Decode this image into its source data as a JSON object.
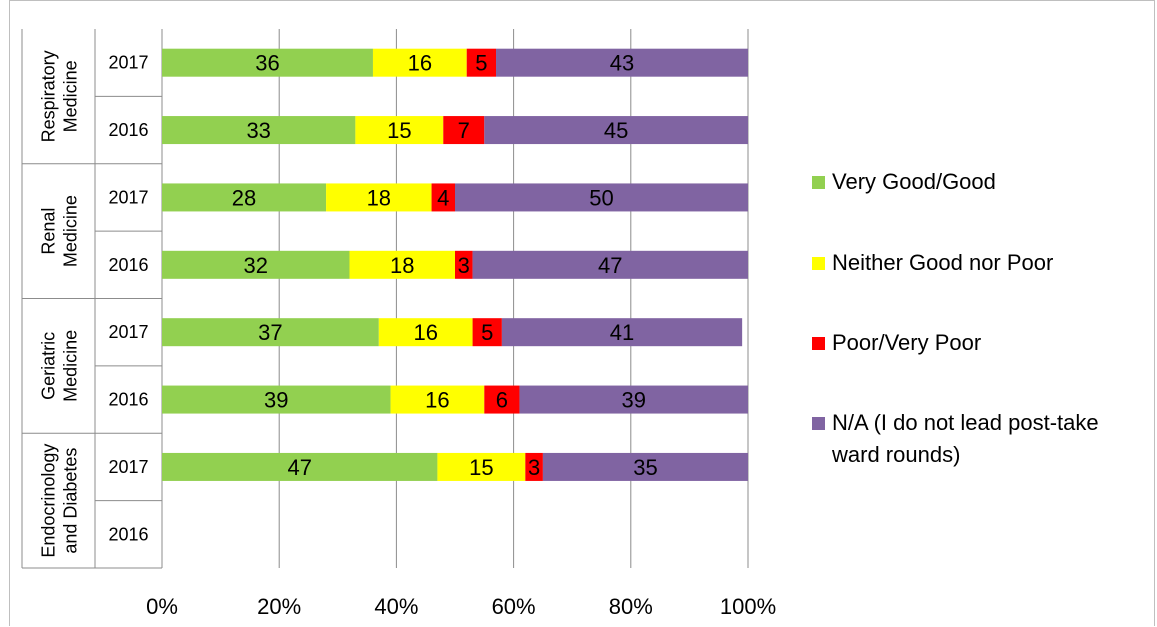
{
  "chart_data": {
    "type": "bar",
    "stacked": true,
    "orientation": "horizontal",
    "groups": [
      {
        "name": "Respiratory Medicine",
        "lines": [
          "Respiratory",
          "Medicine"
        ],
        "years": [
          "2017",
          "2016"
        ]
      },
      {
        "name": "Renal Medicine",
        "lines": [
          "Renal",
          "Medicine"
        ],
        "years": [
          "2017",
          "2016"
        ]
      },
      {
        "name": "Geriatric Medicine",
        "lines": [
          "Geriatric",
          "Medicine"
        ],
        "years": [
          "2017",
          "2016"
        ]
      },
      {
        "name": "Endocrinology and Diabetes",
        "lines": [
          "Endocrinology",
          "and Diabetes"
        ],
        "years": [
          "2017",
          "2016"
        ]
      }
    ],
    "categories": [
      "Respiratory Medicine 2017",
      "Respiratory Medicine 2016",
      "Renal Medicine 2017",
      "Renal Medicine 2016",
      "Geriatric Medicine 2017",
      "Geriatric Medicine 2016",
      "Endocrinology and Diabetes 2017",
      "Endocrinology and Diabetes 2016"
    ],
    "series": [
      {
        "name": "Very Good/Good",
        "color": "#92d050",
        "values": [
          36,
          33,
          28,
          32,
          37,
          39,
          47,
          null
        ]
      },
      {
        "name": "Neither Good nor Poor",
        "color": "#ffff00",
        "values": [
          16,
          15,
          18,
          18,
          16,
          16,
          15,
          null
        ]
      },
      {
        "name": "Poor/Very Poor",
        "color": "#ff0000",
        "values": [
          5,
          7,
          4,
          3,
          5,
          6,
          3,
          null
        ]
      },
      {
        "name": "N/A (I do not lead post-take ward rounds)",
        "color": "#8064a2",
        "values": [
          43,
          45,
          50,
          47,
          41,
          39,
          35,
          null
        ]
      }
    ],
    "legend_lines": [
      [
        "Very Good/Good"
      ],
      [
        "Neither Good nor Poor"
      ],
      [
        "Poor/Very Poor"
      ],
      [
        "N/A (I do not lead post-take",
        "ward rounds)"
      ]
    ],
    "xticks": [
      "0%",
      "20%",
      "40%",
      "60%",
      "80%",
      "100%"
    ],
    "xlim": [
      0,
      100
    ],
    "grid": true,
    "legend_position": "right"
  }
}
